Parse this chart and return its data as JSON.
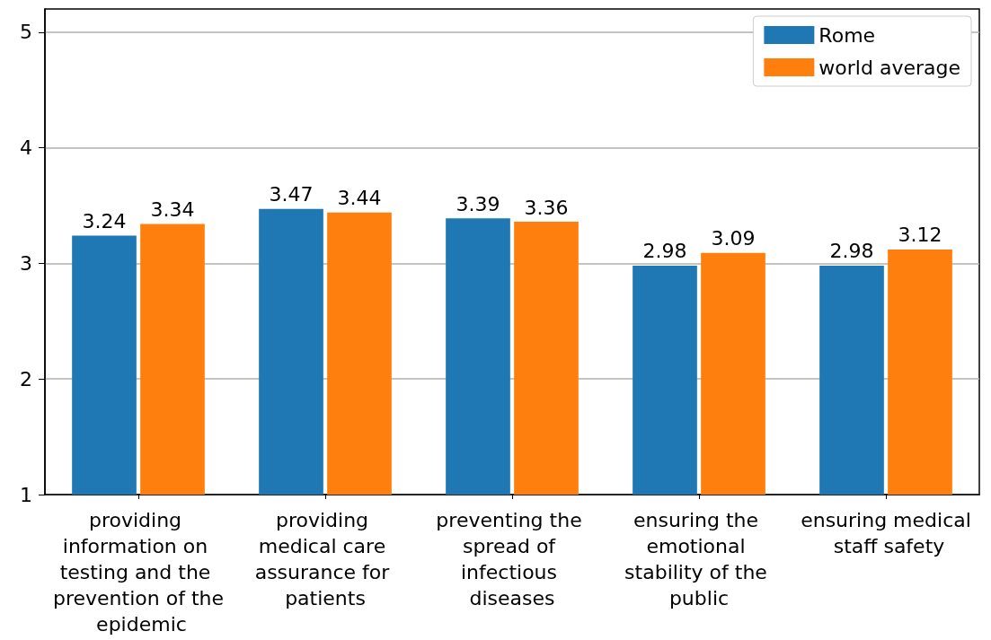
{
  "chart_data": {
    "type": "bar",
    "categories": [
      "providing information on testing and the prevention of the epidemic",
      "providing medical care assurance for patients",
      "preventing the spread of infectious diseases",
      "ensuring the emotional stability of the public",
      "ensuring medical staff safety"
    ],
    "series": [
      {
        "name": "Rome",
        "color": "#1f77b4",
        "values": [
          3.24,
          3.47,
          3.39,
          2.98,
          2.98
        ]
      },
      {
        "name": "world average",
        "color": "#ff7f0e",
        "values": [
          3.34,
          3.44,
          3.36,
          3.09,
          3.12
        ]
      }
    ],
    "ylim": [
      1,
      5.2
    ],
    "yticks": [
      1,
      2,
      3,
      4,
      5
    ],
    "grid": "y",
    "legend": "top right",
    "data_labels": true
  }
}
